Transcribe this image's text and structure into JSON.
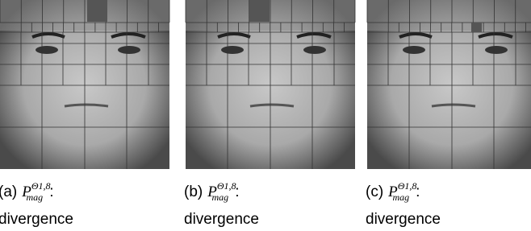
{
  "panels": [
    {
      "tag": "(a)",
      "base": "P",
      "sub": "mag",
      "sup": "Θ1,8",
      "colon": ":",
      "line2": "divergence"
    },
    {
      "tag": "(b)",
      "base": "P",
      "sub": "mag",
      "sup": "Θ1,8",
      "colon": ":",
      "line2": "divergence"
    },
    {
      "tag": "(c)",
      "base": "P",
      "sub": "mag",
      "sup": "Θ1,8",
      "colon": ":",
      "line2": "divergence"
    }
  ]
}
